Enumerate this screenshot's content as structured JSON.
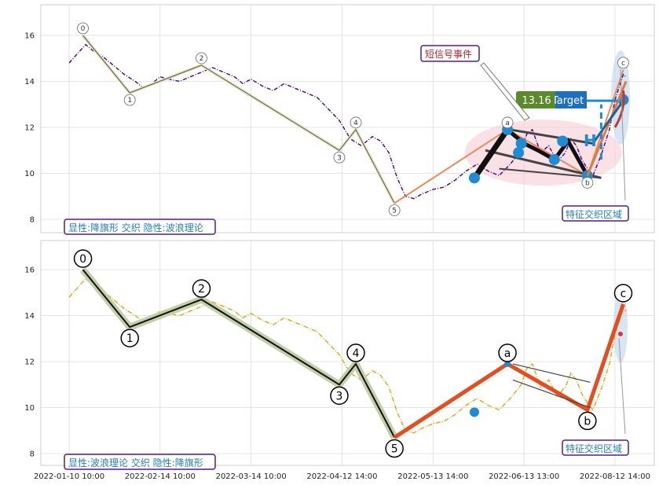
{
  "chart_data": [
    {
      "type": "line",
      "panel": "top",
      "ylim": [
        7.4,
        17.3
      ],
      "yticks": [
        8,
        10,
        12,
        14,
        16
      ],
      "grid": true,
      "price_color": "#4b0082",
      "wave_color": "#444444",
      "price": [
        [
          0,
          14.8
        ],
        [
          3,
          15.2
        ],
        [
          6,
          15.6
        ],
        [
          9,
          15.3
        ],
        [
          12,
          15.1
        ],
        [
          16,
          14.7
        ],
        [
          20,
          14.3
        ],
        [
          24,
          14.0
        ],
        [
          27,
          13.7
        ],
        [
          30,
          13.9
        ],
        [
          33,
          14.2
        ],
        [
          36,
          14.1
        ],
        [
          40,
          14.0
        ],
        [
          44,
          14.2
        ],
        [
          48,
          14.4
        ],
        [
          52,
          14.6
        ],
        [
          56,
          14.4
        ],
        [
          60,
          14.2
        ],
        [
          63,
          13.9
        ],
        [
          66,
          14.1
        ],
        [
          70,
          13.8
        ],
        [
          74,
          13.6
        ],
        [
          78,
          13.9
        ],
        [
          82,
          13.7
        ],
        [
          86,
          13.5
        ],
        [
          90,
          13.3
        ],
        [
          94,
          12.8
        ],
        [
          98,
          12.3
        ],
        [
          102,
          11.5
        ],
        [
          106,
          11.2
        ],
        [
          110,
          11.6
        ],
        [
          113,
          11.4
        ],
        [
          116,
          10.9
        ],
        [
          119,
          9.8
        ],
        [
          122,
          9.0
        ],
        [
          125,
          8.9
        ],
        [
          128,
          9.1
        ],
        [
          132,
          9.3
        ],
        [
          136,
          9.4
        ],
        [
          140,
          9.7
        ],
        [
          144,
          10.1
        ],
        [
          148,
          10.4
        ],
        [
          152,
          10.1
        ],
        [
          156,
          9.9
        ],
        [
          160,
          10.4
        ],
        [
          164,
          11.0
        ],
        [
          166,
          11.7
        ],
        [
          168,
          11.9
        ],
        [
          171,
          10.9
        ],
        [
          174,
          11.2
        ],
        [
          177,
          10.5
        ],
        [
          180,
          10.9
        ],
        [
          182,
          11.5
        ],
        [
          184,
          11.2
        ],
        [
          186,
          10.6
        ],
        [
          188,
          10.2
        ],
        [
          190,
          9.9
        ],
        [
          193,
          10.8
        ],
        [
          196,
          11.9
        ],
        [
          198,
          13.2
        ],
        [
          201,
          14.3
        ],
        [
          202,
          14.2
        ]
      ],
      "waves": [
        {
          "label": "0",
          "x": 5,
          "y": 16.0
        },
        {
          "label": "1",
          "x": 22,
          "y": 13.5
        },
        {
          "label": "2",
          "x": 48,
          "y": 14.7
        },
        {
          "label": "3",
          "x": 98,
          "y": 11.0
        },
        {
          "label": "4",
          "x": 104,
          "y": 11.9
        },
        {
          "label": "5",
          "x": 118,
          "y": 8.7
        },
        {
          "label": "a",
          "x": 159,
          "y": 11.9
        },
        {
          "label": "b",
          "x": 188,
          "y": 9.9
        },
        {
          "label": "c",
          "x": 201,
          "y": 14.5
        }
      ],
      "annotations": {
        "left_box": "显性:降旗形 交织 隐性:波浪理论",
        "signal_box": "短信号事件",
        "zone_box": "特征交织区域",
        "target_value": "13.16",
        "target_text": "Target",
        "h_letter": "H"
      }
    },
    {
      "type": "line",
      "panel": "bottom",
      "ylim": [
        7.4,
        17.3
      ],
      "yticks": [
        8,
        10,
        12,
        14,
        16
      ],
      "grid": true,
      "price_color": "#e8a317",
      "price": [
        [
          0,
          14.8
        ],
        [
          3,
          15.2
        ],
        [
          6,
          15.6
        ],
        [
          9,
          15.3
        ],
        [
          12,
          15.1
        ],
        [
          16,
          14.7
        ],
        [
          20,
          14.3
        ],
        [
          24,
          14.0
        ],
        [
          27,
          13.7
        ],
        [
          30,
          13.9
        ],
        [
          33,
          14.2
        ],
        [
          36,
          14.1
        ],
        [
          40,
          14.0
        ],
        [
          44,
          14.2
        ],
        [
          48,
          14.4
        ],
        [
          52,
          14.6
        ],
        [
          56,
          14.4
        ],
        [
          60,
          14.2
        ],
        [
          63,
          13.9
        ],
        [
          66,
          14.1
        ],
        [
          70,
          13.8
        ],
        [
          74,
          13.6
        ],
        [
          78,
          13.9
        ],
        [
          82,
          13.7
        ],
        [
          86,
          13.5
        ],
        [
          90,
          13.3
        ],
        [
          94,
          12.8
        ],
        [
          98,
          12.3
        ],
        [
          102,
          11.5
        ],
        [
          106,
          11.2
        ],
        [
          110,
          11.6
        ],
        [
          113,
          11.4
        ],
        [
          116,
          10.9
        ],
        [
          119,
          9.8
        ],
        [
          122,
          9.0
        ],
        [
          125,
          8.9
        ],
        [
          128,
          9.1
        ],
        [
          132,
          9.3
        ],
        [
          136,
          9.4
        ],
        [
          140,
          9.7
        ],
        [
          144,
          10.1
        ],
        [
          148,
          10.4
        ],
        [
          152,
          10.1
        ],
        [
          156,
          9.9
        ],
        [
          160,
          10.4
        ],
        [
          164,
          11.0
        ],
        [
          166,
          11.7
        ],
        [
          168,
          11.9
        ],
        [
          171,
          10.9
        ],
        [
          174,
          11.2
        ],
        [
          177,
          10.5
        ],
        [
          180,
          10.9
        ],
        [
          182,
          11.5
        ],
        [
          184,
          11.2
        ],
        [
          186,
          10.6
        ],
        [
          188,
          10.2
        ],
        [
          190,
          9.9
        ],
        [
          193,
          10.8
        ],
        [
          196,
          11.9
        ],
        [
          198,
          13.2
        ],
        [
          201,
          14.3
        ],
        [
          202,
          14.2
        ]
      ],
      "waves": [
        {
          "label": "0",
          "x": 5,
          "y": 16.0
        },
        {
          "label": "1",
          "x": 22,
          "y": 13.5
        },
        {
          "label": "2",
          "x": 48,
          "y": 14.7
        },
        {
          "label": "3",
          "x": 98,
          "y": 11.0
        },
        {
          "label": "4",
          "x": 104,
          "y": 11.9
        },
        {
          "label": "5",
          "x": 118,
          "y": 8.7
        },
        {
          "label": "a",
          "x": 159,
          "y": 11.9
        },
        {
          "label": "b",
          "x": 188,
          "y": 9.9
        },
        {
          "label": "c",
          "x": 201,
          "y": 14.5
        }
      ],
      "annotations": {
        "left_box": "显性:波浪理论 交织 隐性:降旗形",
        "zone_box": "特征交织区域"
      }
    }
  ],
  "x_axis": {
    "range": [
      0,
      210
    ],
    "ticks": [
      {
        "x": 0,
        "label": "2022-01-10 10:00"
      },
      {
        "x": 33,
        "label": "2022-02-14 10:00"
      },
      {
        "x": 66,
        "label": "2022-03-14 10:00"
      },
      {
        "x": 99,
        "label": "2022-04-12 14:00"
      },
      {
        "x": 132,
        "label": "2022-05-13 14:00"
      },
      {
        "x": 165,
        "label": "2022-06-13 13:00"
      },
      {
        "x": 198,
        "label": "2022-08-12 14:00"
      }
    ]
  }
}
